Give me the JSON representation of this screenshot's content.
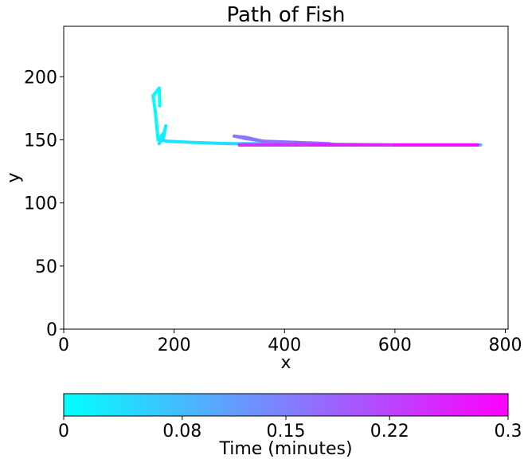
{
  "chart_data": {
    "type": "line",
    "title": "Path of Fish",
    "xlabel": "x",
    "ylabel": "y",
    "xlim": [
      0,
      805
    ],
    "ylim": [
      0,
      240
    ],
    "xticks": [
      "0",
      "200",
      "400",
      "600",
      "800"
    ],
    "yticks": [
      "0",
      "50",
      "100",
      "150",
      "200"
    ],
    "grid": false,
    "colorbar": {
      "label": "Time (minutes)",
      "ticks": [
        "0",
        "0.08",
        "0.15",
        "0.22",
        "0.3"
      ],
      "range": [
        0,
        0.3
      ],
      "orientation": "horizontal",
      "placement": "bottom",
      "colors": [
        "#00ffff",
        "#ff00ff"
      ]
    },
    "series": [
      {
        "points": [
          {
            "x": 174,
            "y": 177,
            "t": 0.0
          },
          {
            "x": 173,
            "y": 191,
            "t": 0.003
          },
          {
            "x": 162,
            "y": 185,
            "t": 0.006
          },
          {
            "x": 166,
            "y": 172,
            "t": 0.009
          },
          {
            "x": 171,
            "y": 150,
            "t": 0.012
          },
          {
            "x": 182,
            "y": 156,
            "t": 0.015
          },
          {
            "x": 185,
            "y": 161,
            "t": 0.018
          },
          {
            "x": 181,
            "y": 152,
            "t": 0.021
          },
          {
            "x": 173,
            "y": 147,
            "t": 0.024
          },
          {
            "x": 176,
            "y": 150,
            "t": 0.027
          },
          {
            "x": 186,
            "y": 149,
            "t": 0.03
          },
          {
            "x": 230,
            "y": 148,
            "t": 0.035
          },
          {
            "x": 300,
            "y": 147,
            "t": 0.04
          },
          {
            "x": 420,
            "y": 147,
            "t": 0.05
          },
          {
            "x": 600,
            "y": 146,
            "t": 0.06
          },
          {
            "x": 755,
            "y": 146,
            "t": 0.07
          },
          {
            "x": 700,
            "y": 146,
            "t": 0.085
          },
          {
            "x": 600,
            "y": 146,
            "t": 0.1
          },
          {
            "x": 480,
            "y": 146,
            "t": 0.115
          },
          {
            "x": 420,
            "y": 147,
            "t": 0.13
          },
          {
            "x": 360,
            "y": 149,
            "t": 0.145
          },
          {
            "x": 330,
            "y": 151,
            "t": 0.15
          },
          {
            "x": 309,
            "y": 153,
            "t": 0.155
          },
          {
            "x": 330,
            "y": 152,
            "t": 0.16
          },
          {
            "x": 360,
            "y": 149,
            "t": 0.165
          },
          {
            "x": 420,
            "y": 148,
            "t": 0.175
          },
          {
            "x": 480,
            "y": 147,
            "t": 0.185
          },
          {
            "x": 490,
            "y": 146,
            "t": 0.19
          },
          {
            "x": 420,
            "y": 146,
            "t": 0.205
          },
          {
            "x": 340,
            "y": 146,
            "t": 0.22
          },
          {
            "x": 318,
            "y": 146,
            "t": 0.23
          },
          {
            "x": 450,
            "y": 146,
            "t": 0.25
          },
          {
            "x": 600,
            "y": 146,
            "t": 0.27
          },
          {
            "x": 750,
            "y": 146,
            "t": 0.3
          }
        ]
      }
    ]
  }
}
